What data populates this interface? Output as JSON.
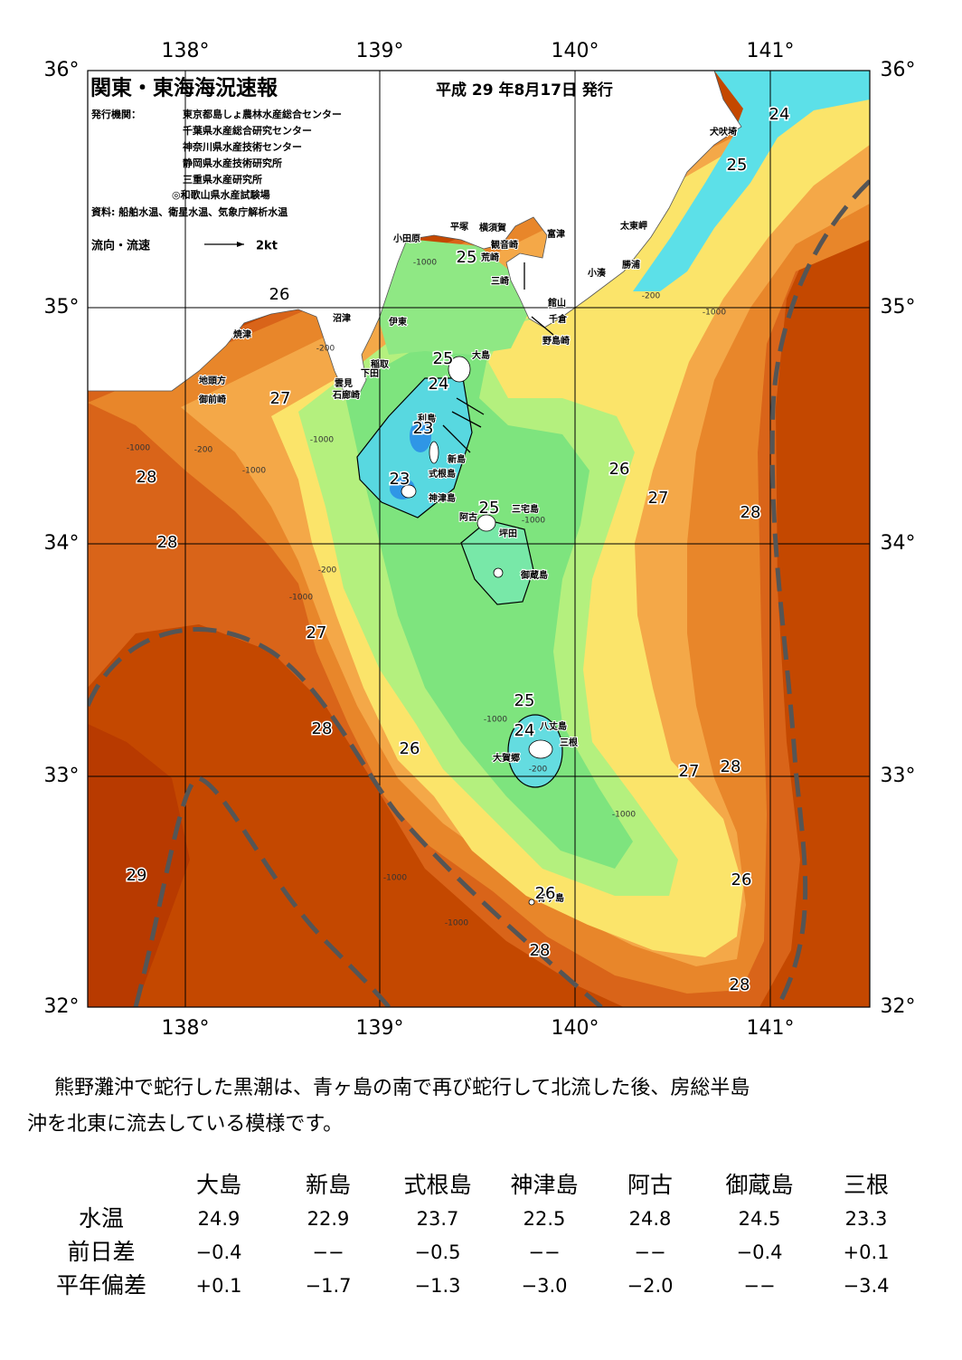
{
  "header": {
    "title": "関東・東海海況速報",
    "date": "平成 29 年8月17日 発行",
    "issuer_label": "発行機関：",
    "issuers": [
      "東京都島しょ農林水産総合センター",
      "千葉県水産総合研究センター",
      "神奈川県水産技術センター",
      "静岡県水産技術研究所",
      "三重県水産研究所",
      "◎和歌山県水産試験場"
    ],
    "source": "資料: 船舶水温、衛星水温、気象庁解析水温",
    "legend_label": "流向・流速",
    "legend_scale": "2kt"
  },
  "map": {
    "lon_labels": [
      "138°",
      "139°",
      "140°",
      "141°"
    ],
    "lat_labels": [
      "36°",
      "35°",
      "34°",
      "33°",
      "32°"
    ],
    "places": [
      "犬吠埼",
      "太東岬",
      "勝浦",
      "小湊",
      "富津",
      "平塚",
      "横須賀",
      "観音崎",
      "荒崎",
      "小田原",
      "三崎",
      "館山",
      "千倉",
      "野島崎",
      "沼津",
      "伊東",
      "焼津",
      "大島",
      "稲取",
      "下田",
      "雲見",
      "石廊崎",
      "地頭方",
      "御前崎",
      "利島",
      "新島",
      "式根島",
      "神津島",
      "三宅島",
      "阿古",
      "坪田",
      "御蔵島",
      "八丈島",
      "三根",
      "大賀郷",
      "青ヶ島"
    ],
    "isotherm_labels": [
      24,
      25,
      25,
      26,
      25,
      24,
      27,
      23,
      28,
      26,
      23,
      27,
      25,
      28,
      28,
      27,
      25,
      24,
      28,
      26,
      27,
      28,
      29,
      26,
      26,
      28,
      28
    ],
    "depth_labels": [
      -1000,
      -200,
      -1000,
      -200,
      -1000,
      -1000,
      -200,
      -1000,
      -200,
      -1000,
      -1000,
      -1000,
      -200,
      -1000,
      -1000,
      -1000
    ]
  },
  "description": [
    "熊野灘沖で蛇行した黒潮は、青ヶ島の南で再び蛇行して北流した後、房総半島",
    "沖を北東に流去している模様です。"
  ],
  "table": {
    "columns": [
      "大島",
      "新島",
      "式根島",
      "神津島",
      "阿古",
      "御蔵島",
      "三根"
    ],
    "rows": [
      {
        "label": "水温",
        "values": [
          "24.9",
          "22.9",
          "23.7",
          "22.5",
          "24.8",
          "24.5",
          "23.3"
        ]
      },
      {
        "label": "前日差",
        "values": [
          "−0.4",
          "−−",
          "−0.5",
          "−−",
          "−−",
          "−0.4",
          "+0.1"
        ]
      },
      {
        "label": "平年偏差",
        "values": [
          "+0.1",
          "−1.7",
          "−1.3",
          "−3.0",
          "−2.0",
          "−−",
          "−3.4"
        ]
      }
    ]
  }
}
